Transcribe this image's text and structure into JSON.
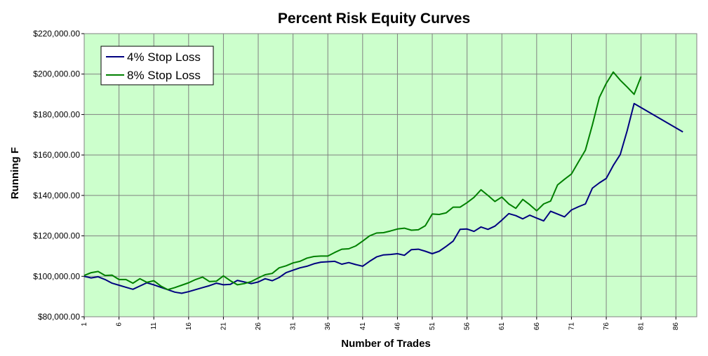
{
  "chart_data": {
    "type": "line",
    "title": "Percent Risk Equity Curves",
    "xlabel": "Number of Trades",
    "ylabel": "Running F",
    "ylim": [
      80000,
      220000
    ],
    "yticks": [
      80000,
      100000,
      120000,
      140000,
      160000,
      180000,
      200000,
      220000
    ],
    "ytick_labels": [
      "$80,000.00",
      "$100,000.00",
      "$120,000.00",
      "$140,000.00",
      "$160,000.00",
      "$180,000.00",
      "$200,000.00",
      "$220,000.00"
    ],
    "xlim": [
      1,
      89
    ],
    "xticks": [
      "1",
      "6",
      "11",
      "16",
      "21",
      "26",
      "31",
      "36",
      "41",
      "46",
      "51",
      "56",
      "61",
      "66",
      "71",
      "76",
      "81",
      "86"
    ],
    "grid": true,
    "legend_position": "top-left",
    "series": [
      {
        "name": "4% Stop Loss",
        "color": "#000080",
        "x": [
          1,
          2,
          3,
          4,
          5,
          6,
          7,
          8,
          9,
          10,
          11,
          12,
          13,
          14,
          15,
          16,
          17,
          18,
          19,
          20,
          21,
          22,
          23,
          24,
          25,
          26,
          27,
          28,
          29,
          30,
          31,
          32,
          33,
          34,
          35,
          36,
          37,
          38,
          39,
          40,
          41,
          42,
          43,
          44,
          45,
          46,
          47,
          48,
          49,
          50,
          51,
          52,
          53,
          54,
          55,
          56,
          57,
          58,
          59,
          60,
          61,
          62,
          63,
          64,
          65,
          66,
          67,
          68,
          69,
          70,
          71,
          72,
          73,
          74,
          75,
          76,
          77,
          78,
          79,
          80,
          87
        ],
        "values": [
          100000,
          99200,
          99800,
          98400,
          96600,
          95600,
          94600,
          93600,
          95200,
          96800,
          95800,
          94600,
          93400,
          92200,
          91600,
          92400,
          93400,
          94400,
          95400,
          96600,
          95800,
          96000,
          98000,
          97200,
          96400,
          97200,
          98800,
          97800,
          99400,
          101800,
          103000,
          104200,
          105000,
          106200,
          107000,
          107200,
          107400,
          106000,
          106800,
          105800,
          105000,
          107400,
          109600,
          110600,
          110800,
          111200,
          110400,
          113200,
          113400,
          112400,
          111200,
          112400,
          114800,
          117400,
          123200,
          123400,
          122200,
          124400,
          123200,
          124800,
          127800,
          131000,
          130000,
          128400,
          130200,
          128800,
          127400,
          132200,
          130800,
          129400,
          132800,
          134400,
          135800,
          143600,
          146200,
          148400,
          154800,
          160200,
          172000,
          185400,
          171400
        ]
      },
      {
        "name": "8% Stop Loss",
        "color": "#008000",
        "x": [
          1,
          2,
          3,
          4,
          5,
          6,
          7,
          8,
          9,
          10,
          11,
          12,
          13,
          14,
          15,
          16,
          17,
          18,
          19,
          20,
          21,
          22,
          23,
          24,
          25,
          26,
          27,
          28,
          29,
          30,
          31,
          32,
          33,
          34,
          35,
          36,
          37,
          38,
          39,
          40,
          41,
          42,
          43,
          44,
          45,
          46,
          47,
          48,
          49,
          50,
          51,
          52,
          53,
          54,
          55,
          56,
          57,
          58,
          59,
          60,
          61,
          62,
          63,
          64,
          65,
          66,
          67,
          68,
          69,
          70,
          71,
          72,
          73,
          74,
          75,
          76,
          77,
          78,
          79,
          80,
          81
        ],
        "values": [
          100400,
          101800,
          102400,
          100400,
          100600,
          98400,
          98400,
          96600,
          98800,
          97000,
          97800,
          95200,
          93400,
          94400,
          95600,
          96800,
          98400,
          99600,
          97400,
          97600,
          100200,
          97800,
          95800,
          96400,
          97400,
          99200,
          100800,
          101400,
          104200,
          105200,
          106600,
          107400,
          109000,
          109800,
          110000,
          110000,
          111800,
          113400,
          113600,
          115000,
          117400,
          120000,
          121400,
          121600,
          122400,
          123400,
          123800,
          122800,
          123000,
          125000,
          130800,
          130600,
          131400,
          134200,
          134200,
          136400,
          139000,
          142800,
          140000,
          137000,
          139200,
          135800,
          133600,
          138000,
          135400,
          132400,
          135800,
          137200,
          145200,
          148000,
          150600,
          156600,
          162400,
          174800,
          188400,
          195400,
          201000,
          197000,
          193600,
          190000,
          198800
        ]
      }
    ]
  }
}
